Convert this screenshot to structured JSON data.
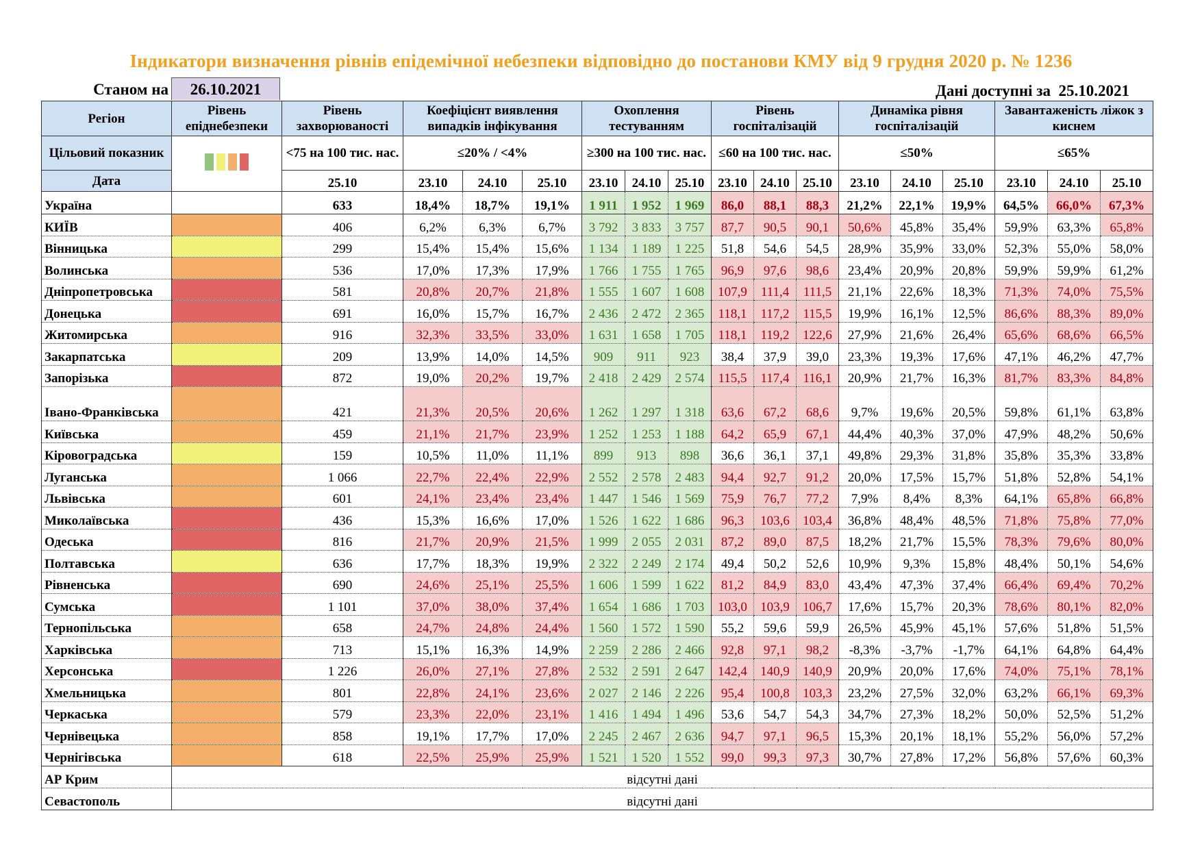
{
  "title": "Індикатори визначення рівнів епідемічної небезпеки відповідно до постанови КМУ від 9 грудня 2020 р. № 1236",
  "as_of_label": "Станом на",
  "as_of_date": "26.10.2021",
  "available_label": "Дані доступні за",
  "available_date": "25.10.2021",
  "colors": {
    "green": "#93c47d",
    "yellow": "#f2f27a",
    "orange": "#f4b06a",
    "red": "#e06666",
    "alert_bg": "#f4cccc",
    "alert_text": "#a50010",
    "testing_bg": "#d9ead3",
    "testing_text": "#3d7a22",
    "header_bg": "#cfe0f2",
    "title": "#f0a020"
  },
  "header": {
    "region": "Регіон",
    "level": "Рівень епіднебезпеки",
    "incidence": "Рівень захворюваності",
    "coef": "Коефіцієнт виявлення випадків інфікування",
    "testing": "Охоплення тестуванням",
    "hosp": "Рівень госпіталізацій",
    "dyn": "Динаміка рівня госпіталізацій",
    "beds": "Завантаженість ліжок з киснем",
    "target_label": "Цільовий показник",
    "target_incidence": "<75 на 100 тис. нас.",
    "target_coef": "≤20% / <4%",
    "target_testing": "≥300 на 100 тис. нас.",
    "target_hosp": "≤60 на 100 тис. нас.",
    "target_dyn": "≤50%",
    "target_beds": "≤65%",
    "level_legend": [
      "green",
      "yellow",
      "orange",
      "red"
    ],
    "date_label": "Дата",
    "incidence_date": "25.10",
    "dates": [
      "23.10",
      "24.10",
      "25.10"
    ]
  },
  "rows": [
    {
      "region": "Україна",
      "level": "",
      "incidence": "633",
      "coef": [
        "18,4%",
        "18,7%",
        "19,1%"
      ],
      "testing": [
        "1 911",
        "1 952",
        "1 969"
      ],
      "hosp": [
        "86,0",
        "88,1",
        "88,3"
      ],
      "dyn": [
        "21,2%",
        "22,1%",
        "19,9%"
      ],
      "beds": [
        "64,5%",
        "66,0%",
        "67,3%"
      ]
    },
    {
      "region": "КИЇВ",
      "level": "orange",
      "incidence": "406",
      "coef": [
        "6,2%",
        "6,3%",
        "6,7%"
      ],
      "testing": [
        "3 792",
        "3 833",
        "3 757"
      ],
      "hosp": [
        "87,7",
        "90,5",
        "90,1"
      ],
      "dyn": [
        "50,6%",
        "45,8%",
        "35,4%"
      ],
      "beds": [
        "59,9%",
        "63,3%",
        "65,8%"
      ]
    },
    {
      "region": "Вінницька",
      "level": "yellow",
      "incidence": "299",
      "coef": [
        "15,4%",
        "15,4%",
        "15,6%"
      ],
      "testing": [
        "1 134",
        "1 189",
        "1 225"
      ],
      "hosp": [
        "51,8",
        "54,6",
        "54,5"
      ],
      "dyn": [
        "28,9%",
        "35,9%",
        "33,0%"
      ],
      "beds": [
        "52,3%",
        "55,0%",
        "58,0%"
      ]
    },
    {
      "region": "Волинська",
      "level": "orange",
      "incidence": "536",
      "coef": [
        "17,0%",
        "17,3%",
        "17,9%"
      ],
      "testing": [
        "1 766",
        "1 755",
        "1 765"
      ],
      "hosp": [
        "96,9",
        "97,6",
        "98,6"
      ],
      "dyn": [
        "23,4%",
        "20,9%",
        "20,8%"
      ],
      "beds": [
        "59,9%",
        "59,9%",
        "61,2%"
      ]
    },
    {
      "region": "Дніпропетровська",
      "level": "red",
      "incidence": "581",
      "coef": [
        "20,8%",
        "20,7%",
        "21,8%"
      ],
      "testing": [
        "1 555",
        "1 607",
        "1 608"
      ],
      "hosp": [
        "107,9",
        "111,4",
        "111,5"
      ],
      "dyn": [
        "21,1%",
        "22,6%",
        "18,3%"
      ],
      "beds": [
        "71,3%",
        "74,0%",
        "75,5%"
      ]
    },
    {
      "region": "Донецька",
      "level": "red",
      "incidence": "691",
      "coef": [
        "16,0%",
        "15,7%",
        "16,7%"
      ],
      "testing": [
        "2 436",
        "2 472",
        "2 365"
      ],
      "hosp": [
        "118,1",
        "117,2",
        "115,5"
      ],
      "dyn": [
        "19,9%",
        "16,1%",
        "12,5%"
      ],
      "beds": [
        "86,6%",
        "88,3%",
        "89,0%"
      ]
    },
    {
      "region": "Житомирська",
      "level": "orange",
      "incidence": "916",
      "coef": [
        "32,3%",
        "33,5%",
        "33,0%"
      ],
      "testing": [
        "1 631",
        "1 658",
        "1 705"
      ],
      "hosp": [
        "118,1",
        "119,2",
        "122,6"
      ],
      "dyn": [
        "27,9%",
        "21,6%",
        "26,4%"
      ],
      "beds": [
        "65,6%",
        "68,6%",
        "66,5%"
      ]
    },
    {
      "region": "Закарпатська",
      "level": "yellow",
      "incidence": "209",
      "coef": [
        "13,9%",
        "14,0%",
        "14,5%"
      ],
      "testing": [
        "909",
        "911",
        "923"
      ],
      "hosp": [
        "38,4",
        "37,9",
        "39,0"
      ],
      "dyn": [
        "23,3%",
        "19,3%",
        "17,6%"
      ],
      "beds": [
        "47,1%",
        "46,2%",
        "47,7%"
      ]
    },
    {
      "region": "Запорізька",
      "level": "red",
      "incidence": "872",
      "coef": [
        "19,0%",
        "20,2%",
        "19,7%"
      ],
      "testing": [
        "2 418",
        "2 429",
        "2 574"
      ],
      "hosp": [
        "115,5",
        "117,4",
        "116,1"
      ],
      "dyn": [
        "20,9%",
        "21,7%",
        "16,3%"
      ],
      "beds": [
        "81,7%",
        "83,3%",
        "84,8%"
      ]
    },
    {
      "region": "Івано-Франківська",
      "level": "orange",
      "incidence": "421",
      "coef": [
        "21,3%",
        "20,5%",
        "20,6%"
      ],
      "testing": [
        "1 262",
        "1 297",
        "1 318"
      ],
      "hosp": [
        "63,6",
        "67,2",
        "68,6"
      ],
      "dyn": [
        "9,7%",
        "19,6%",
        "20,5%"
      ],
      "beds": [
        "59,8%",
        "61,1%",
        "63,8%"
      ]
    },
    {
      "region": "Київська",
      "level": "orange",
      "incidence": "459",
      "coef": [
        "21,1%",
        "21,7%",
        "23,9%"
      ],
      "testing": [
        "1 252",
        "1 253",
        "1 188"
      ],
      "hosp": [
        "64,2",
        "65,9",
        "67,1"
      ],
      "dyn": [
        "44,4%",
        "40,3%",
        "37,0%"
      ],
      "beds": [
        "47,9%",
        "48,2%",
        "50,6%"
      ]
    },
    {
      "region": "Кіровоградська",
      "level": "yellow",
      "incidence": "159",
      "coef": [
        "10,5%",
        "11,0%",
        "11,1%"
      ],
      "testing": [
        "899",
        "913",
        "898"
      ],
      "hosp": [
        "36,6",
        "36,1",
        "37,1"
      ],
      "dyn": [
        "49,8%",
        "29,3%",
        "31,8%"
      ],
      "beds": [
        "35,8%",
        "35,3%",
        "33,8%"
      ]
    },
    {
      "region": "Луганська",
      "level": "orange",
      "incidence": "1 066",
      "coef": [
        "22,7%",
        "22,4%",
        "22,9%"
      ],
      "testing": [
        "2 552",
        "2 578",
        "2 483"
      ],
      "hosp": [
        "94,4",
        "92,7",
        "91,2"
      ],
      "dyn": [
        "20,0%",
        "17,5%",
        "15,7%"
      ],
      "beds": [
        "51,8%",
        "52,8%",
        "54,1%"
      ]
    },
    {
      "region": "Львівська",
      "level": "orange",
      "incidence": "601",
      "coef": [
        "24,1%",
        "23,4%",
        "23,4%"
      ],
      "testing": [
        "1 447",
        "1 546",
        "1 569"
      ],
      "hosp": [
        "75,9",
        "76,7",
        "77,2"
      ],
      "dyn": [
        "7,9%",
        "8,4%",
        "8,3%"
      ],
      "beds": [
        "64,1%",
        "65,8%",
        "66,8%"
      ]
    },
    {
      "region": "Миколаївська",
      "level": "red",
      "incidence": "436",
      "coef": [
        "15,3%",
        "16,6%",
        "17,0%"
      ],
      "testing": [
        "1 526",
        "1 622",
        "1 686"
      ],
      "hosp": [
        "96,3",
        "103,6",
        "103,4"
      ],
      "dyn": [
        "36,8%",
        "48,4%",
        "48,5%"
      ],
      "beds": [
        "71,8%",
        "75,8%",
        "77,0%"
      ]
    },
    {
      "region": "Одеська",
      "level": "red",
      "incidence": "816",
      "coef": [
        "21,7%",
        "20,9%",
        "21,5%"
      ],
      "testing": [
        "1 999",
        "2 055",
        "2 031"
      ],
      "hosp": [
        "87,2",
        "89,0",
        "87,5"
      ],
      "dyn": [
        "18,2%",
        "21,7%",
        "15,5%"
      ],
      "beds": [
        "78,3%",
        "79,6%",
        "80,0%"
      ]
    },
    {
      "region": "Полтавська",
      "level": "yellow",
      "incidence": "636",
      "coef": [
        "17,7%",
        "18,3%",
        "19,9%"
      ],
      "testing": [
        "2 322",
        "2 249",
        "2 174"
      ],
      "hosp": [
        "49,4",
        "50,2",
        "52,6"
      ],
      "dyn": [
        "10,9%",
        "9,3%",
        "15,8%"
      ],
      "beds": [
        "48,4%",
        "50,1%",
        "54,6%"
      ]
    },
    {
      "region": "Рівненська",
      "level": "red",
      "incidence": "690",
      "coef": [
        "24,6%",
        "25,1%",
        "25,5%"
      ],
      "testing": [
        "1 606",
        "1 599",
        "1 622"
      ],
      "hosp": [
        "81,2",
        "84,9",
        "83,0"
      ],
      "dyn": [
        "43,4%",
        "47,3%",
        "37,4%"
      ],
      "beds": [
        "66,4%",
        "69,4%",
        "70,2%"
      ]
    },
    {
      "region": "Сумська",
      "level": "red",
      "incidence": "1 101",
      "coef": [
        "37,0%",
        "38,0%",
        "37,4%"
      ],
      "testing": [
        "1 654",
        "1 686",
        "1 703"
      ],
      "hosp": [
        "103,0",
        "103,9",
        "106,7"
      ],
      "dyn": [
        "17,6%",
        "15,7%",
        "20,3%"
      ],
      "beds": [
        "78,6%",
        "80,1%",
        "82,0%"
      ]
    },
    {
      "region": "Тернопільська",
      "level": "orange",
      "incidence": "658",
      "coef": [
        "24,7%",
        "24,8%",
        "24,4%"
      ],
      "testing": [
        "1 560",
        "1 572",
        "1 590"
      ],
      "hosp": [
        "55,2",
        "59,6",
        "59,9"
      ],
      "dyn": [
        "26,5%",
        "45,9%",
        "45,1%"
      ],
      "beds": [
        "57,6%",
        "51,8%",
        "51,5%"
      ]
    },
    {
      "region": "Харківська",
      "level": "orange",
      "incidence": "713",
      "coef": [
        "15,1%",
        "16,3%",
        "14,9%"
      ],
      "testing": [
        "2 259",
        "2 286",
        "2 466"
      ],
      "hosp": [
        "92,8",
        "97,1",
        "98,2"
      ],
      "dyn": [
        "-8,3%",
        "-3,7%",
        "-1,7%"
      ],
      "beds": [
        "64,1%",
        "64,8%",
        "64,4%"
      ]
    },
    {
      "region": "Херсонська",
      "level": "red",
      "incidence": "1 226",
      "coef": [
        "26,0%",
        "27,1%",
        "27,8%"
      ],
      "testing": [
        "2 532",
        "2 591",
        "2 647"
      ],
      "hosp": [
        "142,4",
        "140,9",
        "140,9"
      ],
      "dyn": [
        "20,9%",
        "20,0%",
        "17,6%"
      ],
      "beds": [
        "74,0%",
        "75,1%",
        "78,1%"
      ]
    },
    {
      "region": "Хмельницька",
      "level": "orange",
      "incidence": "801",
      "coef": [
        "22,8%",
        "24,1%",
        "23,6%"
      ],
      "testing": [
        "2 027",
        "2 146",
        "2 226"
      ],
      "hosp": [
        "95,4",
        "100,8",
        "103,3"
      ],
      "dyn": [
        "23,2%",
        "27,5%",
        "32,0%"
      ],
      "beds": [
        "63,2%",
        "66,1%",
        "69,3%"
      ]
    },
    {
      "region": "Черкаська",
      "level": "orange",
      "incidence": "579",
      "coef": [
        "23,3%",
        "22,0%",
        "23,1%"
      ],
      "testing": [
        "1 416",
        "1 494",
        "1 496"
      ],
      "hosp": [
        "53,6",
        "54,7",
        "54,3"
      ],
      "dyn": [
        "34,7%",
        "27,3%",
        "18,2%"
      ],
      "beds": [
        "50,0%",
        "52,5%",
        "51,2%"
      ]
    },
    {
      "region": "Чернівецька",
      "level": "orange",
      "incidence": "858",
      "coef": [
        "19,1%",
        "17,7%",
        "17,0%"
      ],
      "testing": [
        "2 245",
        "2 467",
        "2 636"
      ],
      "hosp": [
        "94,7",
        "97,1",
        "96,5"
      ],
      "dyn": [
        "15,3%",
        "20,1%",
        "18,1%"
      ],
      "beds": [
        "55,2%",
        "56,0%",
        "57,2%"
      ]
    },
    {
      "region": "Чернігівська",
      "level": "orange",
      "incidence": "618",
      "coef": [
        "22,5%",
        "25,9%",
        "25,9%"
      ],
      "testing": [
        "1 521",
        "1 520",
        "1 552"
      ],
      "hosp": [
        "99,0",
        "99,3",
        "97,3"
      ],
      "dyn": [
        "30,7%",
        "27,8%",
        "17,2%"
      ],
      "beds": [
        "56,8%",
        "57,6%",
        "60,3%"
      ]
    }
  ],
  "missing_rows": [
    {
      "region": "АР Крим",
      "note": "відсутні дані"
    },
    {
      "region": "Севастополь",
      "note": "відсутні дані"
    }
  ]
}
